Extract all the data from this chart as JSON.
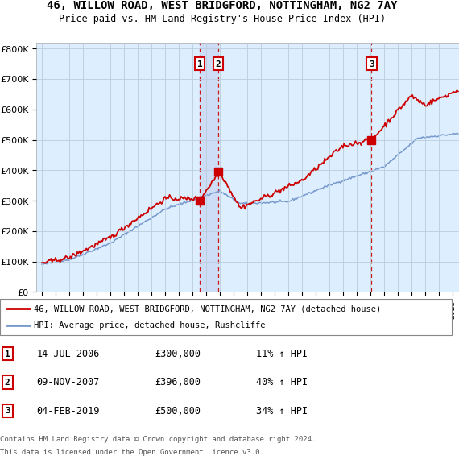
{
  "title_line1": "46, WILLOW ROAD, WEST BRIDGFORD, NOTTINGHAM, NG2 7AY",
  "title_line2": "Price paid vs. HM Land Registry's House Price Index (HPI)",
  "y_ticks": [
    0,
    100000,
    200000,
    300000,
    400000,
    500000,
    600000,
    700000,
    800000
  ],
  "y_tick_labels": [
    "£0",
    "£100K",
    "£200K",
    "£300K",
    "£400K",
    "£500K",
    "£600K",
    "£700K",
    "£800K"
  ],
  "sale_year_floats": [
    2006.538,
    2007.872,
    2019.093
  ],
  "sale_prices": [
    300000,
    396000,
    500000
  ],
  "sale_labels": [
    "1",
    "2",
    "3"
  ],
  "legend_red": "46, WILLOW ROAD, WEST BRIDGFORD, NOTTINGHAM, NG2 7AY (detached house)",
  "legend_blue": "HPI: Average price, detached house, Rushcliffe",
  "table_rows": [
    {
      "num": "1",
      "date": "14-JUL-2006",
      "price": "£300,000",
      "hpi": "11% ↑ HPI"
    },
    {
      "num": "2",
      "date": "09-NOV-2007",
      "price": "£396,000",
      "hpi": "40% ↑ HPI"
    },
    {
      "num": "3",
      "date": "04-FEB-2019",
      "price": "£500,000",
      "hpi": "34% ↑ HPI"
    }
  ],
  "footer_line1": "Contains HM Land Registry data © Crown copyright and database right 2024.",
  "footer_line2": "This data is licensed under the Open Government Licence v3.0.",
  "red_color": "#cc0000",
  "blue_color": "#7799cc",
  "shade_color": "#ccddf5",
  "bg_color": "#ddeeff",
  "plot_bg": "#ffffff",
  "grid_color": "#bbccdd",
  "vline_color": "#cc0000",
  "ylim_max": 820000,
  "xlim_min": 1994.6,
  "xlim_max": 2025.5
}
